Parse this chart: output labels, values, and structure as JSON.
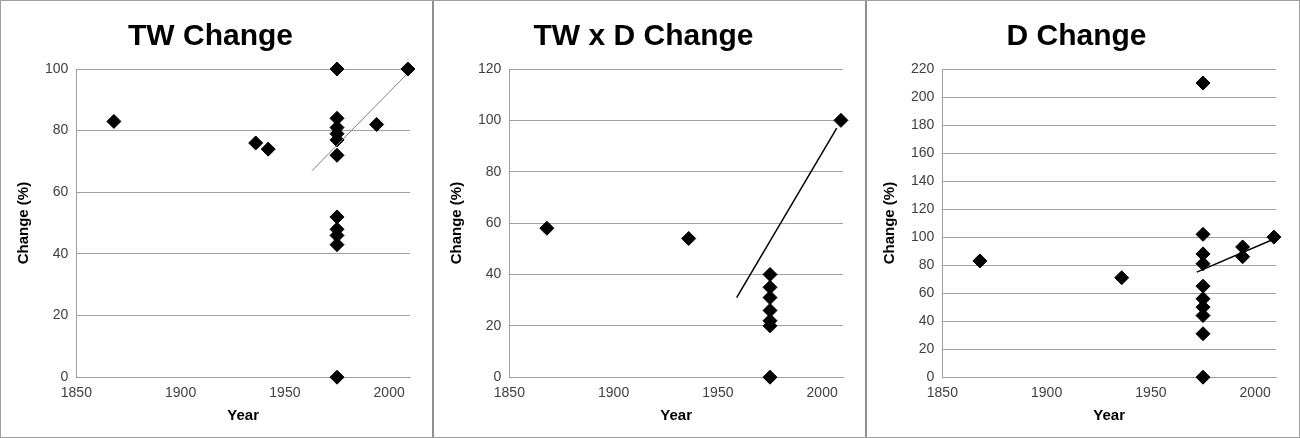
{
  "chart_data": [
    {
      "type": "scatter",
      "title": "TW Change",
      "xlabel": "Year",
      "ylabel": "Change (%)",
      "xlim": [
        1850,
        2010
      ],
      "xticks": [
        1850,
        1900,
        1950,
        2000
      ],
      "ylim": [
        0,
        100
      ],
      "yticks": [
        0,
        20,
        40,
        60,
        80,
        100
      ],
      "grid": "y",
      "legend": false,
      "marker": "diamond",
      "series": [
        {
          "color": "#000000",
          "x": [
            1868,
            1936,
            1942,
            1975,
            1975,
            1975,
            1975,
            1975,
            1975,
            1975,
            1975,
            1975,
            1975,
            1975,
            1994,
            2008,
            2009
          ],
          "values": [
            83,
            76,
            74,
            100,
            84,
            81,
            79,
            77,
            72,
            52,
            48,
            46,
            43,
            0,
            82,
            null,
            100
          ]
        },
        {
          "type": "line",
          "marker": "none",
          "color": "#808080",
          "x": [
            1963,
            2008
          ],
          "values": [
            67,
            98
          ]
        }
      ]
    },
    {
      "type": "scatter",
      "title": "TW x D Change",
      "xlabel": "Year",
      "ylabel": "Change (%)",
      "xlim": [
        1850,
        2010
      ],
      "xticks": [
        1850,
        1900,
        1950,
        2000
      ],
      "ylim": [
        0,
        120
      ],
      "yticks": [
        0,
        20,
        40,
        60,
        80,
        100,
        120
      ],
      "grid": "y",
      "legend": false,
      "marker": "diamond",
      "series": [
        {
          "color": "#000000",
          "x": [
            1868,
            1936,
            1975,
            1975,
            1975,
            1975,
            1975,
            1975,
            1975,
            2008,
            2009
          ],
          "values": [
            58,
            54,
            40,
            35,
            31,
            26,
            22,
            20,
            0,
            null,
            100
          ]
        },
        {
          "type": "line",
          "marker": "none",
          "color": "#000000",
          "x": [
            1959,
            2007
          ],
          "values": [
            31,
            97
          ]
        }
      ]
    },
    {
      "type": "scatter",
      "title": "D Change",
      "xlabel": "Year",
      "ylabel": "Change (%)",
      "xlim": [
        1850,
        2010
      ],
      "xticks": [
        1850,
        1900,
        1950,
        2000
      ],
      "ylim": [
        0,
        220
      ],
      "yticks": [
        0,
        20,
        40,
        60,
        80,
        100,
        120,
        140,
        160,
        180,
        200,
        220
      ],
      "grid": "y",
      "legend": false,
      "marker": "diamond",
      "series": [
        {
          "color": "#000000",
          "x": [
            1868,
            1936,
            1975,
            1975,
            1975,
            1975,
            1975,
            1975,
            1975,
            1975,
            1975,
            1975,
            1994,
            1994,
            2008,
            2009
          ],
          "values": [
            83,
            71,
            210,
            102,
            88,
            81,
            65,
            56,
            50,
            44,
            31,
            0,
            93,
            86,
            null,
            100
          ]
        },
        {
          "type": "line",
          "marker": "none",
          "color": "#000000",
          "x": [
            1972,
            2008
          ],
          "values": [
            75,
            98
          ]
        }
      ]
    }
  ]
}
